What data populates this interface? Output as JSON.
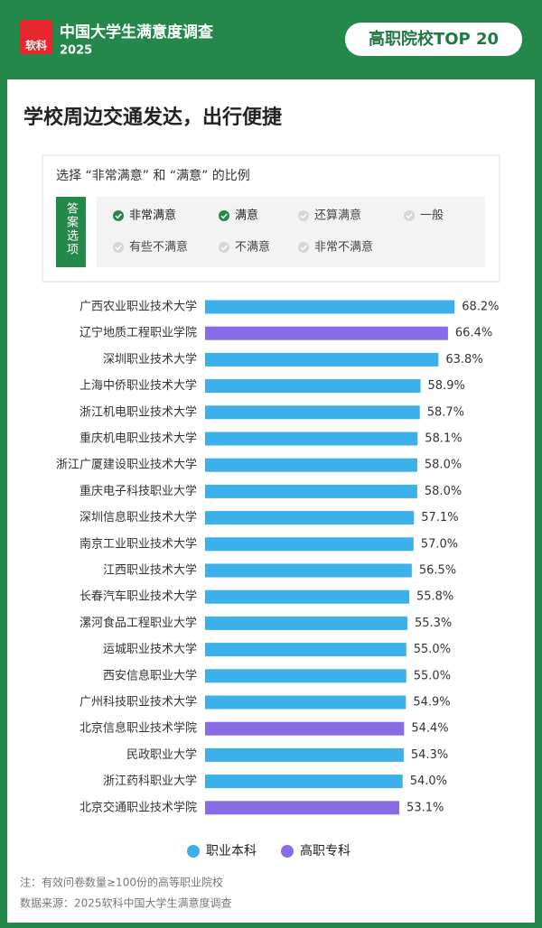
{
  "header": {
    "logo": "软科",
    "brand": "中国大学生满意度调查",
    "year": "2025",
    "badge": "高职院校TOP 20"
  },
  "title": "学校周边交通发达，出行便捷",
  "question": {
    "text": "选择 “非常满意” 和 “满意” 的比例",
    "label": "答案选项",
    "options": [
      {
        "label": "非常满意",
        "checked": true
      },
      {
        "label": "满意",
        "checked": true
      },
      {
        "label": "还算满意",
        "checked": false
      },
      {
        "label": "一般",
        "checked": false
      },
      {
        "label": "有些不满意",
        "checked": false
      },
      {
        "label": "不满意",
        "checked": false
      },
      {
        "label": "非常不满意",
        "checked": false
      }
    ]
  },
  "chart_data": {
    "type": "hbar",
    "categories": [
      "广西农业职业技术大学",
      "辽宁地质工程职业学院",
      "深圳职业技术大学",
      "上海中侨职业技术大学",
      "浙江机电职业技术大学",
      "重庆机电职业技术大学",
      "浙江广厦建设职业技术大学",
      "重庆电子科技职业大学",
      "深圳信息职业技术大学",
      "南京工业职业技术大学",
      "江西职业技术大学",
      "长春汽车职业技术大学",
      "漯河食品工程职业大学",
      "运城职业技术大学",
      "西安信息职业大学",
      "广州科技职业技术大学",
      "北京信息职业技术学院",
      "民政职业大学",
      "浙江药科职业大学",
      "北京交通职业技术学院"
    ],
    "xlim": [
      0,
      100
    ],
    "series": [
      {
        "name": "职业本科",
        "color": "#3bb0ea",
        "values": [
          68.2,
          null,
          63.8,
          58.9,
          58.7,
          58.1,
          58.0,
          58.0,
          57.1,
          57.0,
          56.5,
          55.8,
          55.3,
          55.0,
          55.0,
          54.9,
          null,
          54.3,
          54.0,
          null
        ],
        "value_labels": [
          "68.2%",
          null,
          "63.8%",
          "58.9%",
          "58.7%",
          "58.1%",
          "58.0%",
          "58.0%",
          "57.1%",
          "57.0%",
          "56.5%",
          "55.8%",
          "55.3%",
          "55.0%",
          "55.0%",
          "54.9%",
          null,
          "54.3%",
          "54.0%",
          null
        ]
      },
      {
        "name": "高职专科",
        "color": "#8a6be6",
        "values": [
          null,
          66.4,
          null,
          null,
          null,
          null,
          null,
          null,
          null,
          null,
          null,
          null,
          null,
          null,
          null,
          null,
          54.4,
          null,
          null,
          53.1
        ],
        "value_labels": [
          null,
          "66.4%",
          null,
          null,
          null,
          null,
          null,
          null,
          null,
          null,
          null,
          null,
          null,
          null,
          null,
          null,
          "54.4%",
          null,
          null,
          "53.1%"
        ]
      }
    ]
  },
  "notes": [
    "注：有效问卷数量≥100份的高等职业院校",
    "数据来源：2025软科中国大学生满意度调查"
  ]
}
